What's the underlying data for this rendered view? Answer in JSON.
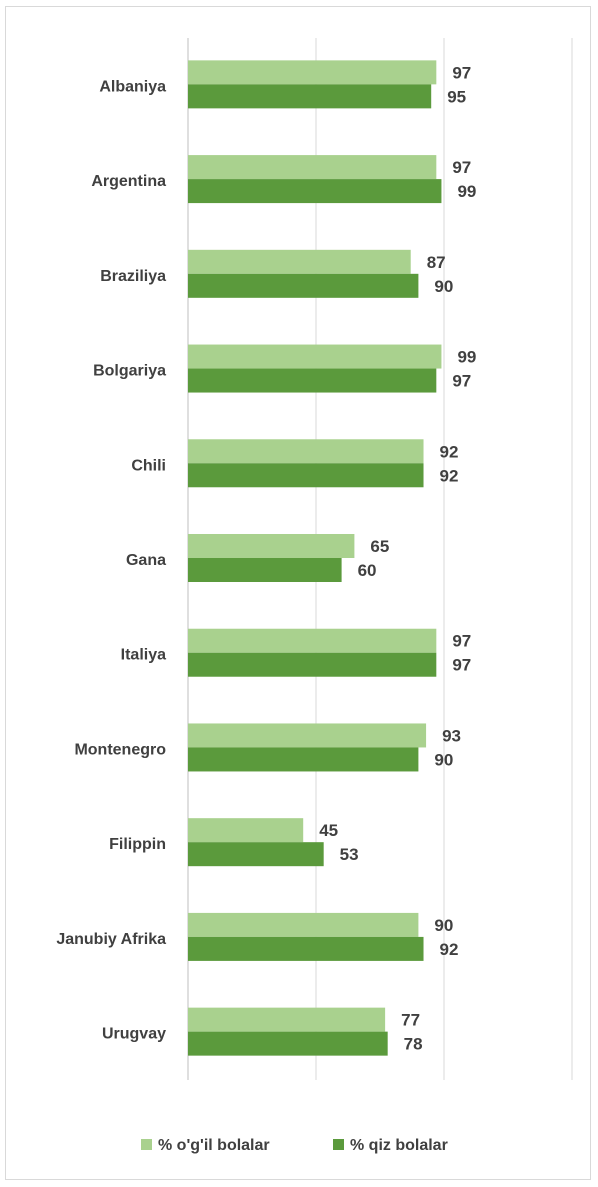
{
  "chart_data": {
    "type": "bar",
    "orientation": "horizontal",
    "categories": [
      "Albaniya",
      "Argentina",
      "Braziliya",
      "Bolgariya",
      "Chili",
      "Gana",
      "Italiya",
      "Montenegro",
      "Filippin",
      "Janubiy Afrika",
      "Urugvay"
    ],
    "series": [
      {
        "name": "% o'g'il bolalar",
        "color": "#a9d18e",
        "values": [
          97,
          97,
          87,
          99,
          92,
          65,
          97,
          93,
          45,
          90,
          77
        ]
      },
      {
        "name": "% qiz bolalar",
        "color": "#5b9a3c",
        "values": [
          95,
          99,
          90,
          97,
          92,
          60,
          97,
          90,
          53,
          92,
          78
        ]
      }
    ],
    "xlim": [
      0,
      150
    ],
    "grid": true,
    "data_labels": true,
    "legend_position": "bottom"
  }
}
